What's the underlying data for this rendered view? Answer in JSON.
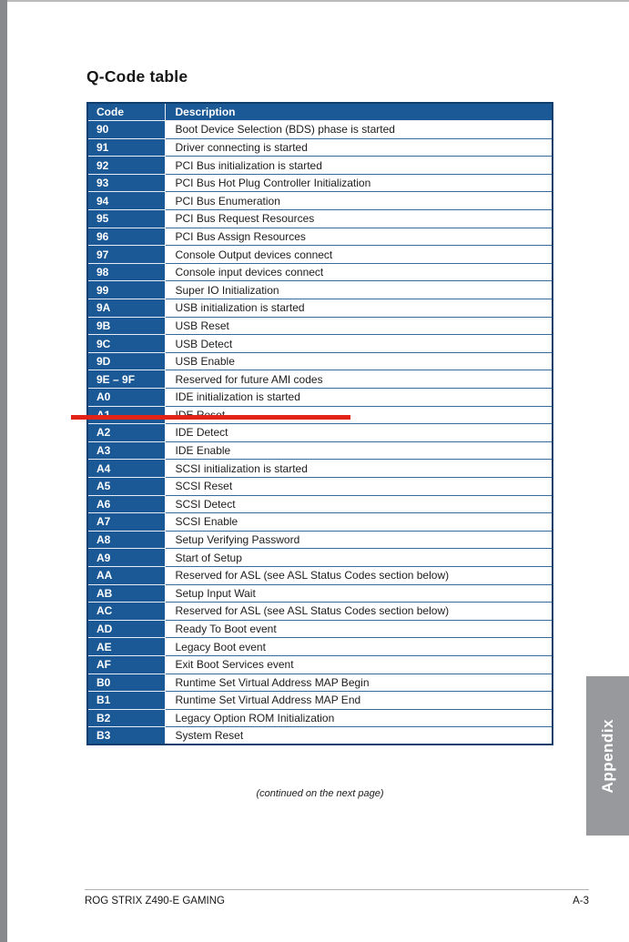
{
  "page": {
    "title": "Q-Code table",
    "continued_note": "(continued on the next page)",
    "side_tab": "Appendix",
    "footer": {
      "left": "ROG STRIX Z490-E GAMING",
      "right": "A-3"
    }
  },
  "table": {
    "headers": [
      "Code",
      "Description"
    ],
    "highlighted_code": "A0",
    "rows": [
      {
        "code": "90",
        "description": "Boot Device Selection (BDS) phase is started"
      },
      {
        "code": "91",
        "description": "Driver connecting is started"
      },
      {
        "code": "92",
        "description": "PCI Bus initialization is started"
      },
      {
        "code": "93",
        "description": "PCI Bus Hot Plug Controller Initialization"
      },
      {
        "code": "94",
        "description": "PCI Bus Enumeration"
      },
      {
        "code": "95",
        "description": "PCI Bus Request Resources"
      },
      {
        "code": "96",
        "description": "PCI Bus Assign Resources"
      },
      {
        "code": "97",
        "description": "Console Output devices connect"
      },
      {
        "code": "98",
        "description": "Console input devices connect"
      },
      {
        "code": "99",
        "description": "Super IO Initialization"
      },
      {
        "code": "9A",
        "description": "USB initialization is started"
      },
      {
        "code": "9B",
        "description": "USB Reset"
      },
      {
        "code": "9C",
        "description": "USB Detect"
      },
      {
        "code": "9D",
        "description": "USB Enable"
      },
      {
        "code": "9E – 9F",
        "description": "Reserved for future AMI codes"
      },
      {
        "code": "A0",
        "description": "IDE initialization is started"
      },
      {
        "code": "A1",
        "description": "IDE Reset"
      },
      {
        "code": "A2",
        "description": "IDE Detect"
      },
      {
        "code": "A3",
        "description": "IDE Enable"
      },
      {
        "code": "A4",
        "description": "SCSI initialization is started"
      },
      {
        "code": "A5",
        "description": "SCSI Reset"
      },
      {
        "code": "A6",
        "description": "SCSI Detect"
      },
      {
        "code": "A7",
        "description": "SCSI Enable"
      },
      {
        "code": "A8",
        "description": "Setup Verifying Password"
      },
      {
        "code": "A9",
        "description": "Start of Setup"
      },
      {
        "code": "AA",
        "description": "Reserved for ASL (see ASL Status Codes section below)"
      },
      {
        "code": "AB",
        "description": "Setup Input Wait"
      },
      {
        "code": "AC",
        "description": "Reserved for ASL (see ASL Status Codes section below)"
      },
      {
        "code": "AD",
        "description": "Ready To Boot event"
      },
      {
        "code": "AE",
        "description": "Legacy Boot event"
      },
      {
        "code": "AF",
        "description": "Exit Boot Services event"
      },
      {
        "code": "B0",
        "description": "Runtime Set Virtual Address MAP Begin"
      },
      {
        "code": "B1",
        "description": "Runtime Set Virtual Address MAP End"
      },
      {
        "code": "B2",
        "description": "Legacy Option ROM Initialization"
      },
      {
        "code": "B3",
        "description": "System Reset"
      }
    ]
  },
  "colors": {
    "table_blue": "#1a5896",
    "table_border_navy": "#0f3e6c",
    "annotation_red": "#e42318",
    "tab_gray": "#98999d"
  }
}
